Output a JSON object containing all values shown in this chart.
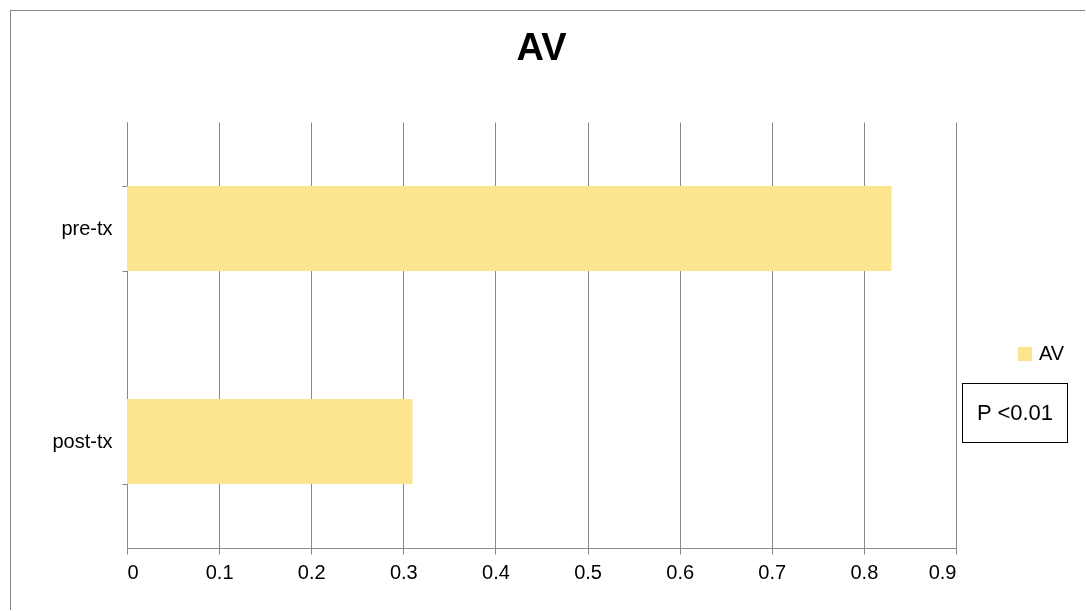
{
  "chart_data": {
    "type": "bar",
    "orientation": "horizontal",
    "title": "AV",
    "categories": [
      "pre-tx",
      "post-tx"
    ],
    "series": [
      {
        "name": "AV",
        "color": "#fde48f",
        "values": [
          0.83,
          0.31
        ]
      }
    ],
    "xlim": [
      0,
      0.9
    ],
    "xticks": [
      0,
      0.1,
      0.2,
      0.3,
      0.4,
      0.5,
      0.6,
      0.7,
      0.8,
      0.9
    ],
    "grid": "x",
    "legend": "right",
    "annotations": [
      "P <0.01"
    ]
  }
}
